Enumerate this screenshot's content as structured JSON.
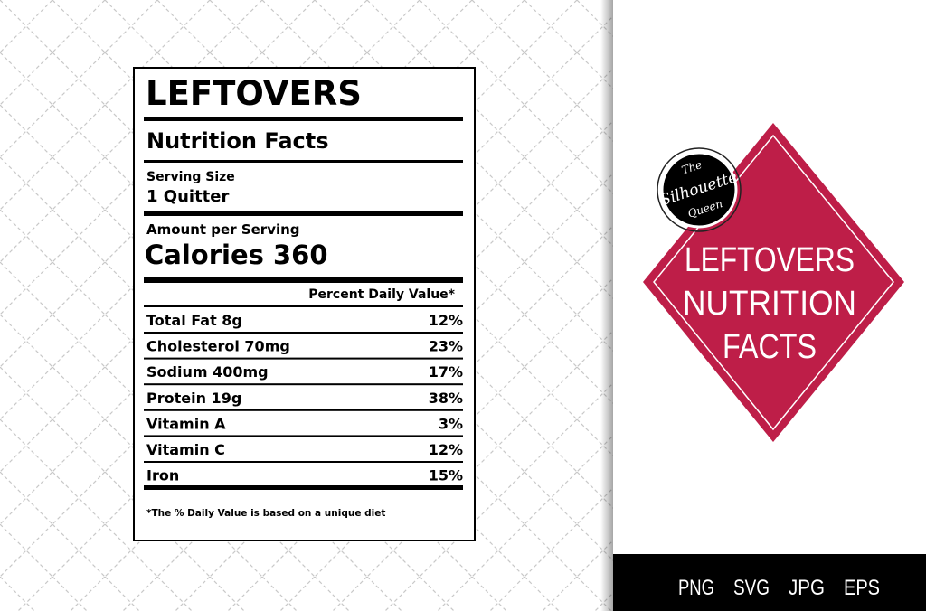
{
  "label": {
    "title": "LEFTOVERS",
    "heading": "Nutrition Facts",
    "serving_size_label": "Serving Size",
    "serving_size": "1 Quitter",
    "amount_label": "Amount per Serving",
    "calories": "Calories 360",
    "dv_header": "Percent Daily Value*",
    "rows": [
      [
        "Total Fat 8g",
        "12%"
      ],
      [
        "Cholesterol 70mg",
        "23%"
      ],
      [
        "Sodium 400mg",
        "17%"
      ],
      [
        "Protein 19g",
        "38%"
      ],
      [
        "Vitamin A",
        "3%"
      ],
      [
        "Vitamin C",
        "12%"
      ],
      [
        "Iron",
        "15%"
      ]
    ],
    "footnote": "*The % Daily Value is based on a unique diet"
  },
  "badge": {
    "logo": [
      "The",
      "Silhouette",
      "Queen"
    ],
    "title": [
      "LEFTOVERS",
      "NUTRITION",
      "FACTS"
    ]
  },
  "formats": [
    "PNG",
    "SVG",
    "JPG",
    "EPS"
  ]
}
